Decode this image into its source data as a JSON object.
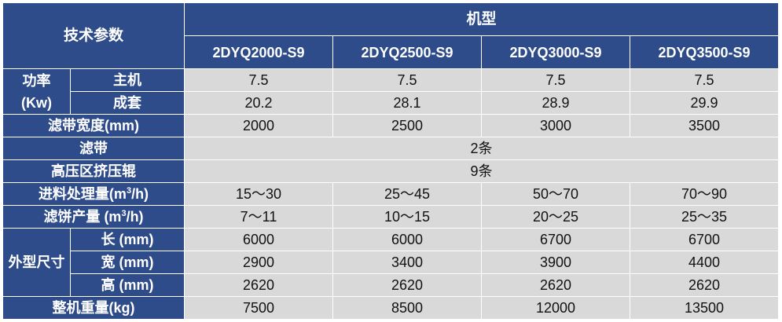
{
  "header": {
    "param_label": "技术参数",
    "model_label": "机型",
    "models": [
      "2DYQ2000-S9",
      "2DYQ2500-S9",
      "2DYQ3000-S9",
      "2DYQ3500-S9"
    ]
  },
  "rows": {
    "power": {
      "label_line1": "功率",
      "label_line2": "(Kw)",
      "main": {
        "label": "主机",
        "values": [
          "7.5",
          "7.5",
          "7.5",
          "7.5"
        ]
      },
      "set": {
        "label": "成套",
        "values": [
          "20.2",
          "28.1",
          "28.9",
          "29.9"
        ]
      }
    },
    "belt_width": {
      "label": "滤带宽度(mm)",
      "values": [
        "2000",
        "2500",
        "3000",
        "3500"
      ]
    },
    "belt": {
      "label": "滤带",
      "value": "2条"
    },
    "rollers": {
      "label": "高压区挤压辊",
      "value": "9条"
    },
    "capacity": {
      "label_pre": "进料处理量(m",
      "label_sup": "3",
      "label_post": "/h)",
      "values": [
        "15～30",
        "25～45",
        "50～70",
        "70～90"
      ]
    },
    "cake": {
      "label_pre": "滤饼产量 (m",
      "label_sup": "3",
      "label_post": "/h)",
      "values": [
        "7～11",
        "10～15",
        "20～25",
        "25～35"
      ]
    },
    "dimensions": {
      "label": "外型尺寸",
      "length": {
        "label": "长 (mm)",
        "values": [
          "6000",
          "6000",
          "6700",
          "6700"
        ]
      },
      "width": {
        "label": "宽 (mm)",
        "values": [
          "2900",
          "3400",
          "3900",
          "4400"
        ]
      },
      "height": {
        "label": "高 (mm)",
        "values": [
          "2620",
          "2620",
          "2620",
          "2620"
        ]
      }
    },
    "weight": {
      "label": "整机重量(kg)",
      "values": [
        "7500",
        "8500",
        "12000",
        "13500"
      ]
    }
  }
}
